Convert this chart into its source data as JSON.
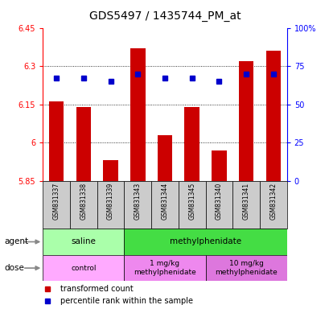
{
  "title": "GDS5497 / 1435744_PM_at",
  "samples": [
    "GSM831337",
    "GSM831338",
    "GSM831339",
    "GSM831343",
    "GSM831344",
    "GSM831345",
    "GSM831340",
    "GSM831341",
    "GSM831342"
  ],
  "bar_values": [
    6.16,
    6.14,
    5.93,
    6.37,
    6.03,
    6.14,
    5.97,
    6.32,
    6.36
  ],
  "percentile_values": [
    67,
    67,
    65,
    70,
    67,
    67,
    65,
    70,
    70
  ],
  "bar_bottom": 5.85,
  "ylim": [
    5.85,
    6.45
  ],
  "yticks": [
    5.85,
    6.0,
    6.15,
    6.3,
    6.45
  ],
  "ytick_labels": [
    "5.85",
    "6",
    "6.15",
    "6.3",
    "6.45"
  ],
  "right_yticks": [
    0,
    25,
    50,
    75,
    100
  ],
  "right_ytick_labels": [
    "0",
    "25",
    "50",
    "75",
    "100%"
  ],
  "bar_color": "#cc0000",
  "dot_color": "#0000cc",
  "agent_groups": [
    {
      "label": "saline",
      "start": 0,
      "end": 3,
      "color": "#aaffaa"
    },
    {
      "label": "methylphenidate",
      "start": 3,
      "end": 9,
      "color": "#44dd44"
    }
  ],
  "dose_groups": [
    {
      "label": "control",
      "start": 0,
      "end": 3,
      "color": "#ffaaff"
    },
    {
      "label": "1 mg/kg\nmethylphenidate",
      "start": 3,
      "end": 6,
      "color": "#ee88ee"
    },
    {
      "label": "10 mg/kg\nmethylphenidate",
      "start": 6,
      "end": 9,
      "color": "#dd77dd"
    }
  ],
  "legend_items": [
    {
      "color": "#cc0000",
      "label": "transformed count"
    },
    {
      "color": "#0000cc",
      "label": "percentile rank within the sample"
    }
  ],
  "title_fontsize": 10,
  "tick_label_fontsize": 7,
  "bar_width": 0.55,
  "sample_bg_color": "#cccccc",
  "grid_lines": [
    6.0,
    6.15,
    6.3
  ]
}
